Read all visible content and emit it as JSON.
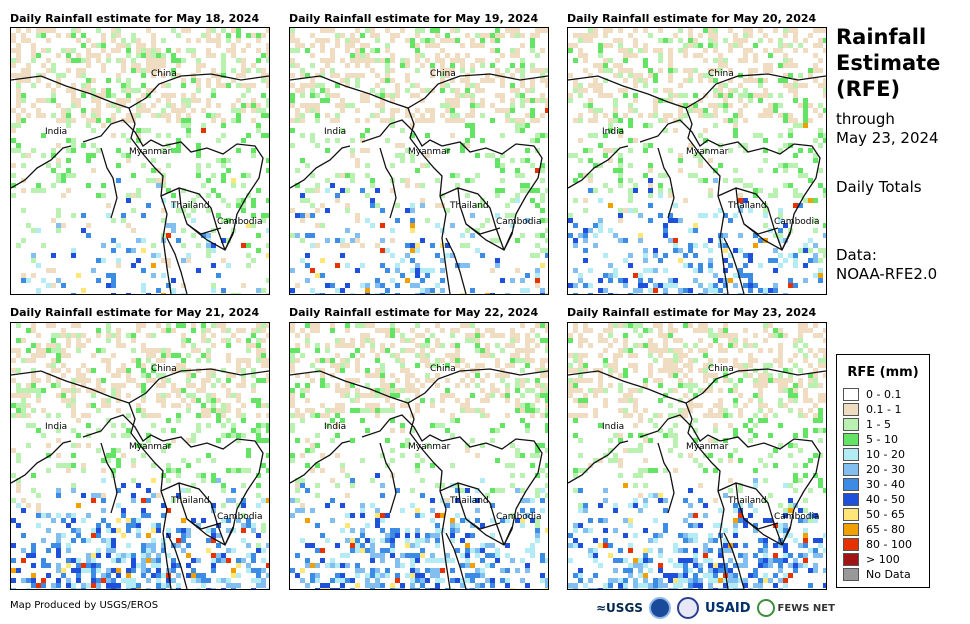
{
  "panels": [
    {
      "title": "Daily Rainfall estimate for May 18, 2024",
      "intensity": 0.35,
      "south_rain": 0.25
    },
    {
      "title": "Daily Rainfall estimate for May 19, 2024",
      "intensity": 0.35,
      "south_rain": 0.35
    },
    {
      "title": "Daily Rainfall estimate for May 20, 2024",
      "intensity": 0.5,
      "south_rain": 0.55
    },
    {
      "title": "Daily Rainfall estimate for May 21, 2024",
      "intensity": 0.4,
      "south_rain": 0.85
    },
    {
      "title": "Daily Rainfall estimate for May 22, 2024",
      "intensity": 0.35,
      "south_rain": 0.8
    },
    {
      "title": "Daily Rainfall estimate for May 23, 2024",
      "intensity": 0.35,
      "south_rain": 0.9
    }
  ],
  "places": {
    "china": "China",
    "india": "India",
    "myanmar": "Myanmar",
    "thailand": "Thailand",
    "cambodia": "Cambodia"
  },
  "side": {
    "title_line1": "Rainfall",
    "title_line2": "Estimate",
    "title_line3": "(RFE)",
    "through": "through",
    "date": "May 23, 2024",
    "daily_totals": "Daily Totals",
    "data_label": "Data:",
    "data_source": "NOAA-RFE2.0"
  },
  "legend": {
    "title": "RFE (mm)",
    "items": [
      {
        "label": "0 - 0.1",
        "color": "#ffffff"
      },
      {
        "label": "0.1 - 1",
        "color": "#f0dcc0"
      },
      {
        "label": "1 - 5",
        "color": "#b9f2b0"
      },
      {
        "label": "5 - 10",
        "color": "#64e464"
      },
      {
        "label": "10 - 20",
        "color": "#b4ecf5"
      },
      {
        "label": "20 - 30",
        "color": "#82bff0"
      },
      {
        "label": "30 - 40",
        "color": "#3c8ce6"
      },
      {
        "label": "40 - 50",
        "color": "#1e50dc"
      },
      {
        "label": "50 - 65",
        "color": "#ffe678"
      },
      {
        "label": "65 - 80",
        "color": "#f0a000"
      },
      {
        "label": "80 - 100",
        "color": "#e63200"
      },
      {
        "label": "> 100",
        "color": "#a01414"
      },
      {
        "label": "No Data",
        "color": "#999999"
      }
    ]
  },
  "footer": {
    "credit": "Map Produced by USGS/EROS"
  },
  "logos": {
    "usgs": "≈USGS",
    "usaid": "USAID",
    "fews": "FEWS NET"
  }
}
